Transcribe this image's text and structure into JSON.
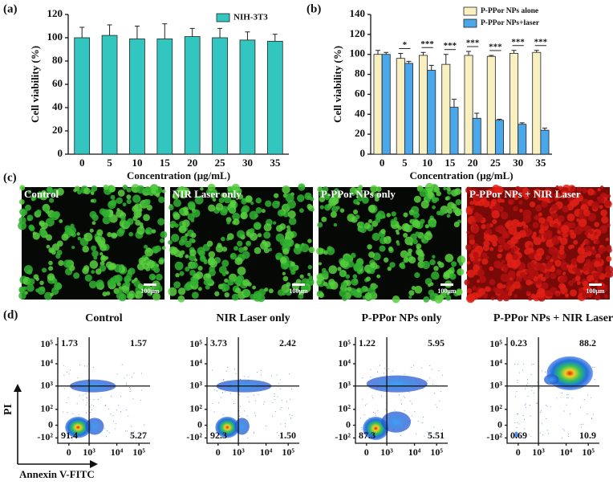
{
  "chart_data": [
    {
      "type": "bar",
      "panel_label": "(a)",
      "xlabel": "Concentration (μg/mL)",
      "ylabel": "Cell viability (%)",
      "categories": [
        "0",
        "5",
        "10",
        "15",
        "20",
        "25",
        "30",
        "35"
      ],
      "series": [
        {
          "name": "NIH-3T3",
          "color": "#33c6c0",
          "values": [
            100,
            102,
            99,
            99,
            101,
            100,
            98,
            97
          ],
          "errors": [
            9,
            9,
            11,
            13,
            7,
            8,
            7,
            6
          ]
        }
      ],
      "ylim": [
        0,
        120
      ],
      "yticks": [
        0,
        20,
        40,
        60,
        80,
        100,
        120
      ]
    },
    {
      "type": "bar",
      "panel_label": "(b)",
      "xlabel": "Concentration (μg/mL)",
      "ylabel": "Cell viability (%)",
      "categories": [
        "0",
        "5",
        "10",
        "15",
        "20",
        "25",
        "30",
        "35"
      ],
      "series": [
        {
          "name": "P-PPor NPs alone",
          "color": "#f8f0c0",
          "values": [
            100,
            96,
            99,
            90,
            99,
            98,
            101,
            102
          ],
          "errors": [
            4,
            5,
            3,
            10,
            4,
            1,
            3,
            2
          ]
        },
        {
          "name": "P-PPor NPs+laser",
          "color": "#4aa8ea",
          "values": [
            100,
            91,
            84,
            47,
            36,
            34,
            30,
            24
          ],
          "errors": [
            2,
            2,
            5,
            8,
            5,
            1,
            1.5,
            2
          ]
        }
      ],
      "significance": [
        null,
        "*",
        "***",
        "***",
        "***",
        "***",
        "***",
        "***"
      ],
      "ylim": [
        0,
        140
      ],
      "yticks": [
        0,
        20,
        40,
        60,
        80,
        100,
        120,
        140
      ]
    }
  ],
  "micrographs": {
    "panel_label": "(c)",
    "images": [
      {
        "label": "Control",
        "scale": "100μm"
      },
      {
        "label": "NIR Laser only",
        "scale": "100μm"
      },
      {
        "label": "P-PPor NPs only",
        "scale": "100μm"
      },
      {
        "label": "P-PPor NPs + NIR Laser",
        "scale": "100μm"
      }
    ]
  },
  "flow_cytometry": {
    "panel_label": "(d)",
    "ylabel": "PI",
    "xlabel": "Annexin V-FITC",
    "x_tick_labels": [
      "0",
      "10³",
      "10⁴",
      "10⁵"
    ],
    "y_tick_labels": [
      "-10²",
      "0",
      "10²",
      "10³",
      "10⁴",
      "10⁵"
    ],
    "plots": [
      {
        "title": "Control",
        "values": [
          1.73,
          1.57,
          91.4,
          5.27
        ]
      },
      {
        "title": "NIR Laser only",
        "values": [
          3.73,
          2.42,
          92.3,
          1.5
        ],
        "value_labels": [
          "3.73",
          "2.42",
          "92.3",
          "1.50"
        ]
      },
      {
        "title": "P-PPor NPs only",
        "values": [
          1.22,
          5.95,
          87.3,
          5.51
        ]
      },
      {
        "title": "P-PPor NPs + NIR Laser",
        "values": [
          0.23,
          88.2,
          0.69,
          10.9
        ]
      }
    ]
  }
}
